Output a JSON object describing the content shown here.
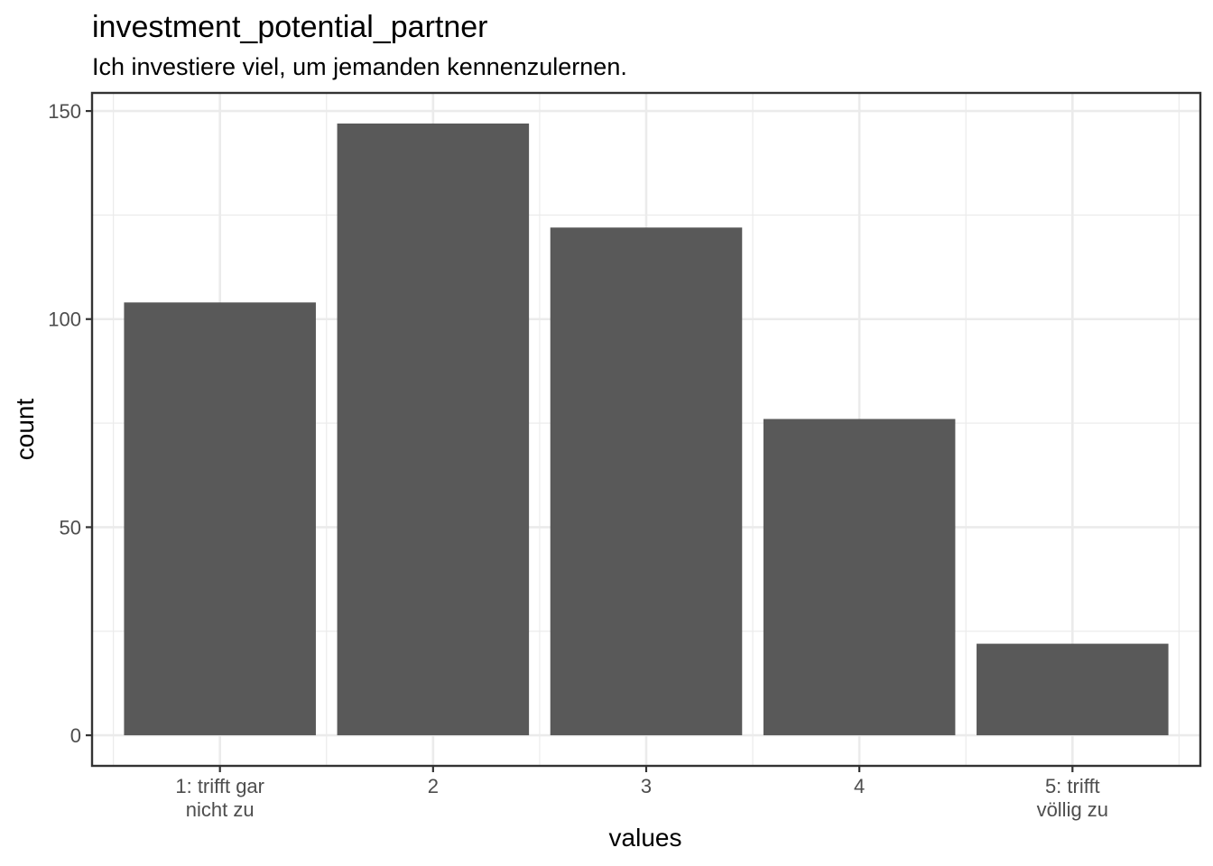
{
  "chart_data": {
    "type": "bar",
    "title": "investment_potential_partner",
    "subtitle": "Ich investiere viel, um jemanden kennenzulernen.",
    "xlabel": "values",
    "ylabel": "count",
    "categories": [
      [
        "1: trifft gar",
        "nicht zu"
      ],
      [
        "2"
      ],
      [
        "3"
      ],
      [
        "4"
      ],
      [
        "5: trifft",
        "völlig zu"
      ]
    ],
    "values": [
      104,
      147,
      122,
      76,
      22
    ],
    "ylim": [
      -7.35,
      154.35
    ],
    "yticks": [
      0,
      50,
      100,
      150
    ],
    "y_minor_ticks": [
      25,
      75,
      125
    ],
    "bar_color": "#595959",
    "grid": true,
    "legend": "none"
  }
}
